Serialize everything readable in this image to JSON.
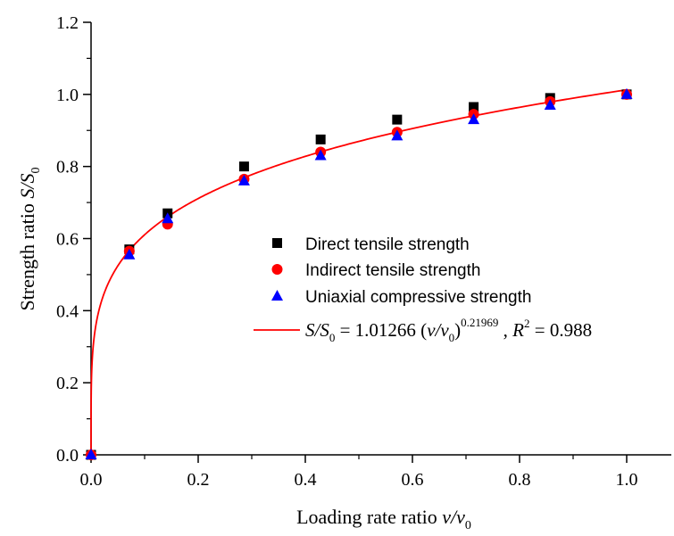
{
  "chart_data": {
    "type": "scatter",
    "xlabel": {
      "prefix": "Loading rate ratio ",
      "var": "v/v",
      "sub": "0"
    },
    "ylabel": {
      "prefix": "Strength ratio ",
      "var": "S/S",
      "sub": "0"
    },
    "xlim": [
      0.0,
      1.0
    ],
    "ylim": [
      0.0,
      1.2
    ],
    "x_ticks": [
      "0.0",
      "0.2",
      "0.4",
      "0.6",
      "0.8",
      "1.0"
    ],
    "y_ticks": [
      "0.0",
      "0.2",
      "0.4",
      "0.6",
      "0.8",
      "1.0",
      "1.2"
    ],
    "legend_position": "center-right",
    "series": [
      {
        "name": "Direct tensile strength",
        "marker": "square",
        "color": "#000000",
        "x": [
          0.0,
          0.0714,
          0.1429,
          0.2857,
          0.4286,
          0.5714,
          0.7143,
          0.8571,
          1.0
        ],
        "y": [
          0.0,
          0.57,
          0.67,
          0.8,
          0.875,
          0.93,
          0.965,
          0.99,
          1.0
        ]
      },
      {
        "name": "Indirect tensile strength",
        "marker": "circle",
        "color": "#ff0000",
        "x": [
          0.0,
          0.0714,
          0.1429,
          0.2857,
          0.4286,
          0.5714,
          0.7143,
          0.8571,
          1.0
        ],
        "y": [
          0.0,
          0.565,
          0.64,
          0.765,
          0.84,
          0.895,
          0.945,
          0.98,
          1.0
        ]
      },
      {
        "name": "Uniaxial compressive strength",
        "marker": "triangle",
        "color": "#0000ff",
        "x": [
          0.0,
          0.0714,
          0.1429,
          0.2857,
          0.4286,
          0.5714,
          0.7143,
          0.8571,
          1.0
        ],
        "y": [
          0.0,
          0.555,
          0.655,
          0.76,
          0.83,
          0.885,
          0.93,
          0.97,
          1.0
        ]
      }
    ],
    "fit": {
      "color": "#ff0000",
      "coefficient": 1.01266,
      "exponent": 0.21969,
      "label_lhs": "S/S",
      "label_lhs_sub": "0",
      "label_eq": " = 1.01266 (",
      "label_var": "v/v",
      "label_var_sub": "0",
      "label_close": ")",
      "label_exp": "0.21969",
      "label_r_sep": " , ",
      "label_r": "R",
      "label_r_sup": "2",
      "label_r_val": " = 0.988"
    }
  }
}
